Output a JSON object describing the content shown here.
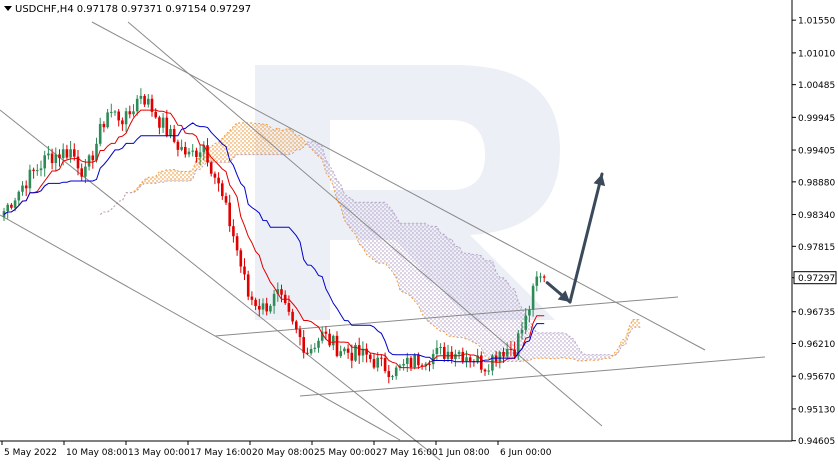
{
  "header": {
    "symbol": "USDCHF,H4",
    "open": "0.97178",
    "high": "0.97371",
    "low": "0.97154",
    "close": "0.97297"
  },
  "colors": {
    "bull": "#2e8b57",
    "bear": "#e00000",
    "tenkan": "#e00000",
    "kijun": "#0000cc",
    "cloud_a": "#f29b3c",
    "cloud_b": "#b7a4c9",
    "trendline": "#8a8a8a",
    "arrow": "#3a4a5a",
    "watermark": "#dde3ef",
    "price_tag": "#ffffff"
  },
  "chart_data": {
    "type": "candlestick",
    "ylim": [
      0.946,
      1.0185
    ],
    "y_ticks": [
      "1.01550",
      "1.01010",
      "1.00485",
      "0.99945",
      "0.99405",
      "0.98880",
      "0.98340",
      "0.97815",
      "0.97297",
      "0.96735",
      "0.96210",
      "0.95670",
      "0.95130",
      "0.94605"
    ],
    "current_price": "0.97297",
    "x_ticks": [
      "5 May 2022",
      "10 May 08:00",
      "13 May 00:00",
      "17 May 16:00",
      "20 May 08:00",
      "25 May 00:00",
      "27 May 16:00",
      "1 Jun 08:00",
      "6 Jun 00:00"
    ],
    "grid": false,
    "indicator": "Ichimoku Kinko Hyo",
    "anchors": [
      [
        0,
        0.984
      ],
      [
        6,
        0.989
      ],
      [
        12,
        0.993
      ],
      [
        18,
        0.994
      ],
      [
        22,
        0.99
      ],
      [
        28,
        1.0005
      ],
      [
        33,
        0.999
      ],
      [
        37,
        1.0035
      ],
      [
        42,
        0.999
      ],
      [
        46,
        0.9955
      ],
      [
        50,
        0.993
      ],
      [
        54,
        0.995
      ],
      [
        58,
        0.988
      ],
      [
        62,
        0.98
      ],
      [
        66,
        0.97
      ],
      [
        70,
        0.968
      ],
      [
        74,
        0.97
      ],
      [
        78,
        0.965
      ],
      [
        82,
        0.961
      ],
      [
        86,
        0.9635
      ],
      [
        90,
        0.9615
      ],
      [
        94,
        0.9605
      ],
      [
        98,
        0.96
      ],
      [
        102,
        0.9585
      ],
      [
        106,
        0.9575
      ],
      [
        110,
        0.959
      ],
      [
        114,
        0.96
      ],
      [
        118,
        0.9605
      ],
      [
        122,
        0.961
      ],
      [
        126,
        0.96
      ],
      [
        130,
        0.9585
      ],
      [
        134,
        0.961
      ],
      [
        138,
        0.9615
      ],
      [
        141,
        0.966
      ],
      [
        144,
        0.9725
      ],
      [
        146,
        0.973
      ]
    ]
  }
}
